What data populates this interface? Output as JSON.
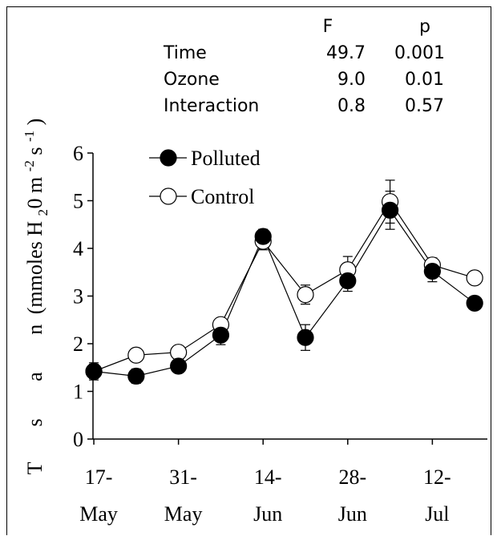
{
  "stats_table": {
    "columns": [
      "F",
      "p"
    ],
    "rows": [
      {
        "label": "Time",
        "F": "49.7",
        "p": "0.001"
      },
      {
        "label": "Ozone",
        "F": "9.0",
        "p": "0.01"
      },
      {
        "label": "Interaction",
        "F": "0.8",
        "p": "0.57"
      }
    ]
  },
  "chart_data": {
    "type": "line",
    "title": "",
    "xlabel": "",
    "ylabel": "T s a n (mmoles H20 m-2 s-1)",
    "ylabel_parts": {
      "letters": [
        "T",
        "s",
        "a",
        "n"
      ],
      "text": "(mmoles H",
      "sub": "2",
      "text2": "0 m",
      "sup1": "-2",
      "text3": " s",
      "sup2": "-1",
      "text4": ")"
    },
    "ylim": [
      0,
      6
    ],
    "yticks": [
      0,
      1,
      2,
      3,
      4,
      5,
      6
    ],
    "x_ticks": [
      {
        "index": 0,
        "line1": "17-",
        "line2": "May"
      },
      {
        "index": 2,
        "line1": "31-",
        "line2": "May"
      },
      {
        "index": 4,
        "line1": "14-",
        "line2": "Jun"
      },
      {
        "index": 6,
        "line1": "28-",
        "line2": "Jun"
      },
      {
        "index": 8,
        "line1": "12-",
        "line2": "Jul"
      }
    ],
    "x": [
      0,
      1,
      2,
      3,
      4,
      5,
      6,
      7,
      8,
      9
    ],
    "xlim": [
      -0.02,
      9.3
    ],
    "legend_position": "top-left",
    "series": [
      {
        "name": "Polluted",
        "marker": "filled",
        "values": [
          1.42,
          1.32,
          1.53,
          2.18,
          4.25,
          2.13,
          3.32,
          4.8,
          3.52,
          2.85
        ],
        "errors": [
          0.15,
          0.15,
          0.12,
          0.2,
          0.15,
          0.27,
          0.22,
          0.4,
          0.22,
          0.0
        ]
      },
      {
        "name": "Control",
        "marker": "open",
        "values": [
          1.42,
          1.76,
          1.82,
          2.4,
          4.15,
          3.03,
          3.55,
          4.98,
          3.65,
          3.38
        ],
        "errors": [
          0.18,
          0.12,
          0.1,
          0.12,
          0.18,
          0.2,
          0.28,
          0.45,
          0.15,
          0.0
        ]
      }
    ],
    "colors": {
      "line": "#000000",
      "filled_marker": "#000000",
      "open_marker": "#ffffff"
    }
  }
}
